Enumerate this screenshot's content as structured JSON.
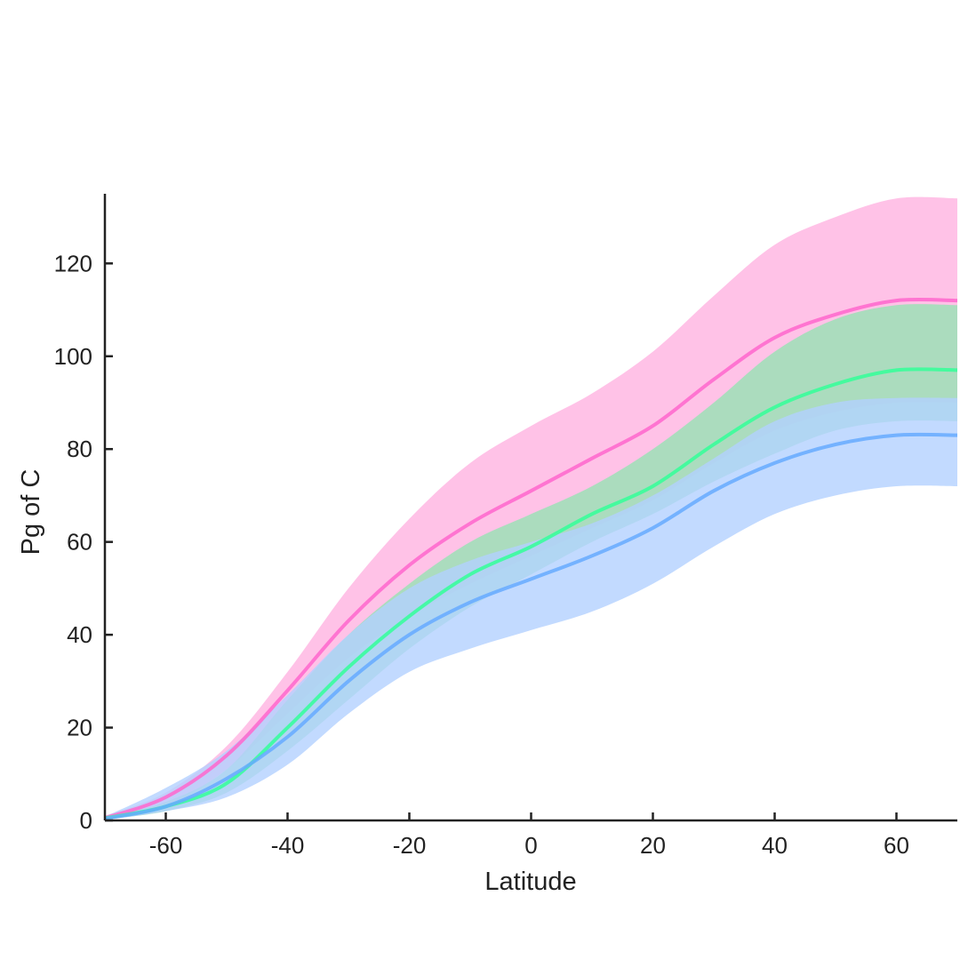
{
  "chart_data": {
    "type": "area",
    "xlabel": "Latitude",
    "ylabel": "Pg of C",
    "xlim": [
      -70,
      70
    ],
    "ylim": [
      0,
      135
    ],
    "xticks": [
      "-60",
      "-40",
      "-20",
      "0",
      "20",
      "40",
      "60"
    ],
    "yticks": [
      "0",
      "20",
      "40",
      "60",
      "80",
      "100",
      "120"
    ],
    "grid": false,
    "legend": "none",
    "x": [
      -70,
      -60,
      -50,
      -40,
      -30,
      -20,
      -10,
      0,
      10,
      20,
      30,
      40,
      50,
      60,
      70
    ],
    "series": [
      {
        "color": "#ff66cc",
        "band_color": "#ffb3e1",
        "mean": [
          0.5,
          5,
          14,
          28,
          43,
          55,
          64,
          71,
          78,
          85,
          95,
          104,
          109,
          112,
          112
        ],
        "upper": [
          1,
          6,
          16,
          32,
          50,
          65,
          77,
          85,
          92,
          101,
          113,
          124,
          130,
          134,
          134
        ],
        "lower": [
          0.2,
          3,
          11,
          23,
          35,
          44,
          51,
          57,
          63,
          69,
          77,
          84,
          88,
          90,
          90
        ]
      },
      {
        "color": "#33ff99",
        "band_color": "#96e2b4",
        "mean": [
          0.5,
          3,
          8,
          20,
          33,
          44,
          53,
          59,
          66,
          72,
          81,
          89,
          94,
          97,
          97
        ],
        "upper": [
          0.8,
          4,
          11,
          26,
          40,
          51,
          60,
          66,
          72,
          80,
          90,
          101,
          108,
          111,
          111
        ],
        "lower": [
          0.2,
          2,
          6,
          15,
          26,
          37,
          46,
          53,
          60,
          66,
          73,
          79,
          84,
          86,
          86
        ]
      },
      {
        "color": "#66aaff",
        "band_color": "#b3d1ff",
        "mean": [
          0.4,
          3,
          9,
          18,
          30,
          40,
          47,
          52,
          57,
          63,
          71,
          77,
          81,
          83,
          83
        ],
        "upper": [
          0.8,
          7,
          15,
          27,
          40,
          50,
          56,
          60,
          64,
          70,
          78,
          86,
          90,
          91,
          91
        ],
        "lower": [
          0.1,
          2,
          5,
          12,
          23,
          32,
          37,
          41,
          45,
          51,
          59,
          66,
          70,
          72,
          72
        ]
      }
    ]
  }
}
